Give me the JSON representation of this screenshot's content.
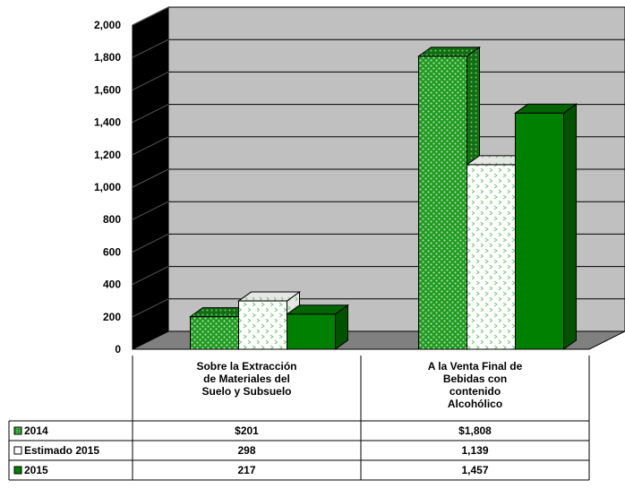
{
  "chart_data": {
    "type": "bar",
    "categories": [
      [
        "Sobre la Extracción",
        "de Materiales del",
        "Suelo y Subsuelo"
      ],
      [
        "A la Venta Final de",
        "Bebidas con",
        "contenido",
        "Alcohólico"
      ]
    ],
    "series": [
      {
        "name": "2014",
        "values": [
          201,
          1808
        ],
        "table_values": [
          "$201",
          "$1,808"
        ],
        "color": "#1e9a1e",
        "pattern": "dots"
      },
      {
        "name": "Estimado 2015",
        "values": [
          298,
          1139
        ],
        "table_values": [
          "298",
          "1,139"
        ],
        "color": "#ffffff",
        "pattern": "chevrons"
      },
      {
        "name": "2015",
        "values": [
          217,
          1457
        ],
        "table_values": [
          "217",
          "1,457"
        ],
        "color": "#008000",
        "pattern": "solid"
      }
    ],
    "y_ticks": [
      "0",
      "200",
      "400",
      "600",
      "800",
      "1,000",
      "1,200",
      "1,400",
      "1,600",
      "1,800",
      "2,000"
    ],
    "ylim": [
      0,
      2000
    ],
    "y_step": 200,
    "title": "",
    "xlabel": "",
    "ylabel": "",
    "grid": true,
    "legend": "data-table",
    "colors": {
      "back_wall": "#c0c0c0",
      "side_wall": "#000000",
      "floor": "#808080",
      "gridline": "#000000"
    }
  }
}
